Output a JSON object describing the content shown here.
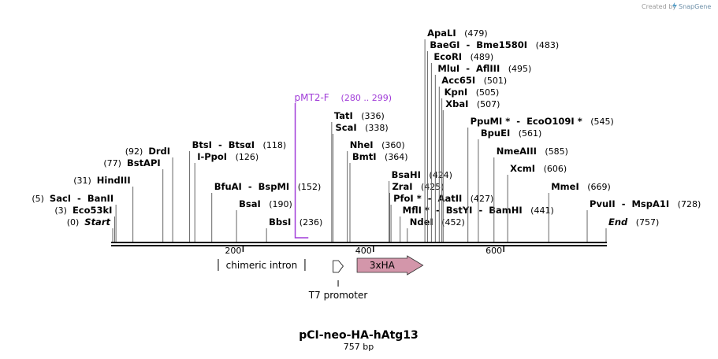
{
  "credit": {
    "text": "Created by",
    "brand": "SnapGene"
  },
  "plasmid": {
    "name": "pCI-neo-HA-hAtg13",
    "length_label": "757 bp"
  },
  "backbone": {
    "start_bp": 0,
    "end_bp": 757
  },
  "ruler": {
    "ticks": [
      {
        "bp": 200,
        "label": "200"
      },
      {
        "bp": 400,
        "label": "400"
      },
      {
        "bp": 600,
        "label": "600"
      }
    ]
  },
  "sites": [
    {
      "bp": 0,
      "names": [
        "Start"
      ],
      "italic": true,
      "pos_label": "(0)"
    },
    {
      "bp": 3,
      "names": [
        "Eco53kI"
      ],
      "pos_label": "(3)"
    },
    {
      "bp": 5,
      "names": [
        "SacI",
        "BanII"
      ],
      "pos_label": "(5)"
    },
    {
      "bp": 31,
      "names": [
        "HindIII"
      ],
      "pos_label": "(31)"
    },
    {
      "bp": 77,
      "names": [
        "BstAPI"
      ],
      "pos_label": "(77)"
    },
    {
      "bp": 92,
      "names": [
        "DrdI"
      ],
      "pos_label": "(92)"
    },
    {
      "bp": 118,
      "names": [
        "BtsI",
        "BtsαI"
      ],
      "pos_label": "(118)"
    },
    {
      "bp": 126,
      "names": [
        "I-PpoI"
      ],
      "pos_label": "(126)"
    },
    {
      "bp": 152,
      "names": [
        "BfuAI",
        "BspMI"
      ],
      "pos_label": "(152)"
    },
    {
      "bp": 190,
      "names": [
        "BsaI"
      ],
      "pos_label": "(190)"
    },
    {
      "bp": 236,
      "names": [
        "BbsI"
      ],
      "pos_label": "(236)"
    },
    {
      "bp": 336,
      "names": [
        "TatI"
      ],
      "pos_label": "(336)"
    },
    {
      "bp": 338,
      "names": [
        "ScaI"
      ],
      "pos_label": "(338)"
    },
    {
      "bp": 360,
      "names": [
        "NheI"
      ],
      "pos_label": "(360)"
    },
    {
      "bp": 364,
      "names": [
        "BmtI"
      ],
      "pos_label": "(364)"
    },
    {
      "bp": 424,
      "names": [
        "BsaHI"
      ],
      "pos_label": "(424)"
    },
    {
      "bp": 425,
      "names": [
        "ZraI"
      ],
      "pos_label": "(425)"
    },
    {
      "bp": 427,
      "names": [
        "PfoI",
        "AatII"
      ],
      "pos_label": "(427)",
      "star_first": true
    },
    {
      "bp": 441,
      "names": [
        "MflI",
        "BstYI",
        "BamHI"
      ],
      "pos_label": "(441)",
      "star_first": true
    },
    {
      "bp": 452,
      "names": [
        "NdeI"
      ],
      "pos_label": "(452)"
    },
    {
      "bp": 479,
      "names": [
        "ApaLI"
      ],
      "pos_label": "(479)"
    },
    {
      "bp": 483,
      "names": [
        "BaeGI",
        "Bme1580I"
      ],
      "pos_label": "(483)"
    },
    {
      "bp": 489,
      "names": [
        "EcoRI"
      ],
      "pos_label": "(489)"
    },
    {
      "bp": 495,
      "names": [
        "MluI",
        "AflIII"
      ],
      "pos_label": "(495)"
    },
    {
      "bp": 501,
      "names": [
        "Acc65I"
      ],
      "pos_label": "(501)"
    },
    {
      "bp": 505,
      "names": [
        "KpnI"
      ],
      "pos_label": "(505)"
    },
    {
      "bp": 507,
      "names": [
        "XbaI"
      ],
      "pos_label": "(507)"
    },
    {
      "bp": 545,
      "names": [
        "PpuMI",
        "EcoO109I"
      ],
      "pos_label": "(545)",
      "star_all": true
    },
    {
      "bp": 561,
      "names": [
        "BpuEI"
      ],
      "pos_label": "(561)"
    },
    {
      "bp": 585,
      "names": [
        "NmeAIII"
      ],
      "pos_label": "(585)"
    },
    {
      "bp": 606,
      "names": [
        "XcmI"
      ],
      "pos_label": "(606)"
    },
    {
      "bp": 669,
      "names": [
        "MmeI"
      ],
      "pos_label": "(669)"
    },
    {
      "bp": 728,
      "names": [
        "PvuII",
        "MspA1I"
      ],
      "pos_label": "(728)"
    },
    {
      "bp": 757,
      "names": [
        "End"
      ],
      "italic": true,
      "pos_label": "(757)"
    }
  ],
  "primer": {
    "name": "pMT2-F",
    "range_label": "(280 .. 299)",
    "start_bp": 280,
    "end_bp": 299,
    "color": "#a03cd8"
  },
  "features": [
    {
      "name": "chimeric intron",
      "type": "intron",
      "start_bp": 162,
      "end_bp": 295
    },
    {
      "name": "T7 promoter",
      "type": "promoter",
      "start_bp": 337,
      "end_bp": 356
    },
    {
      "name": "3xHA",
      "type": "tag",
      "start_bp": 381,
      "end_bp": 470,
      "color": "#d396aa"
    }
  ]
}
